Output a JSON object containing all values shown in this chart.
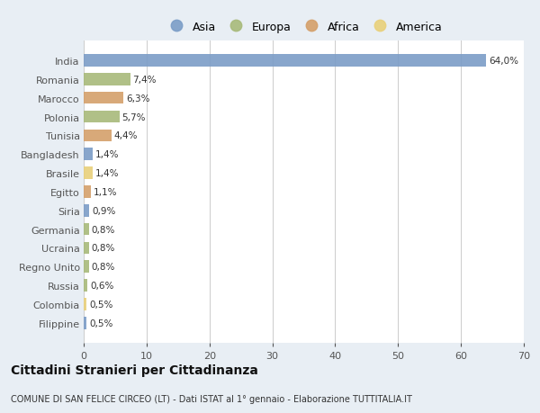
{
  "countries": [
    "India",
    "Romania",
    "Marocco",
    "Polonia",
    "Tunisia",
    "Bangladesh",
    "Brasile",
    "Egitto",
    "Siria",
    "Germania",
    "Ucraina",
    "Regno Unito",
    "Russia",
    "Colombia",
    "Filippine"
  ],
  "values": [
    64.0,
    7.4,
    6.3,
    5.7,
    4.4,
    1.4,
    1.4,
    1.1,
    0.9,
    0.8,
    0.8,
    0.8,
    0.6,
    0.5,
    0.5
  ],
  "labels": [
    "64,0%",
    "7,4%",
    "6,3%",
    "5,7%",
    "4,4%",
    "1,4%",
    "1,4%",
    "1,1%",
    "0,9%",
    "0,8%",
    "0,8%",
    "0,8%",
    "0,6%",
    "0,5%",
    "0,5%"
  ],
  "continents": [
    "Asia",
    "Europa",
    "Africa",
    "Europa",
    "Africa",
    "Asia",
    "America",
    "Africa",
    "Asia",
    "Europa",
    "Europa",
    "Europa",
    "Europa",
    "America",
    "Asia"
  ],
  "colors": {
    "Asia": "#7b9dc7",
    "Europa": "#a8ba7a",
    "Africa": "#d4a06a",
    "America": "#e8d07a"
  },
  "xlim": [
    0,
    70
  ],
  "xticks": [
    0,
    10,
    20,
    30,
    40,
    50,
    60,
    70
  ],
  "title": "Cittadini Stranieri per Cittadinanza",
  "subtitle": "COMUNE DI SAN FELICE CIRCEO (LT) - Dati ISTAT al 1° gennaio - Elaborazione TUTTITALIA.IT",
  "background_color": "#e8eef4",
  "bar_background": "#ffffff",
  "grid_color": "#cccccc",
  "legend_order": [
    "Asia",
    "Europa",
    "Africa",
    "America"
  ]
}
